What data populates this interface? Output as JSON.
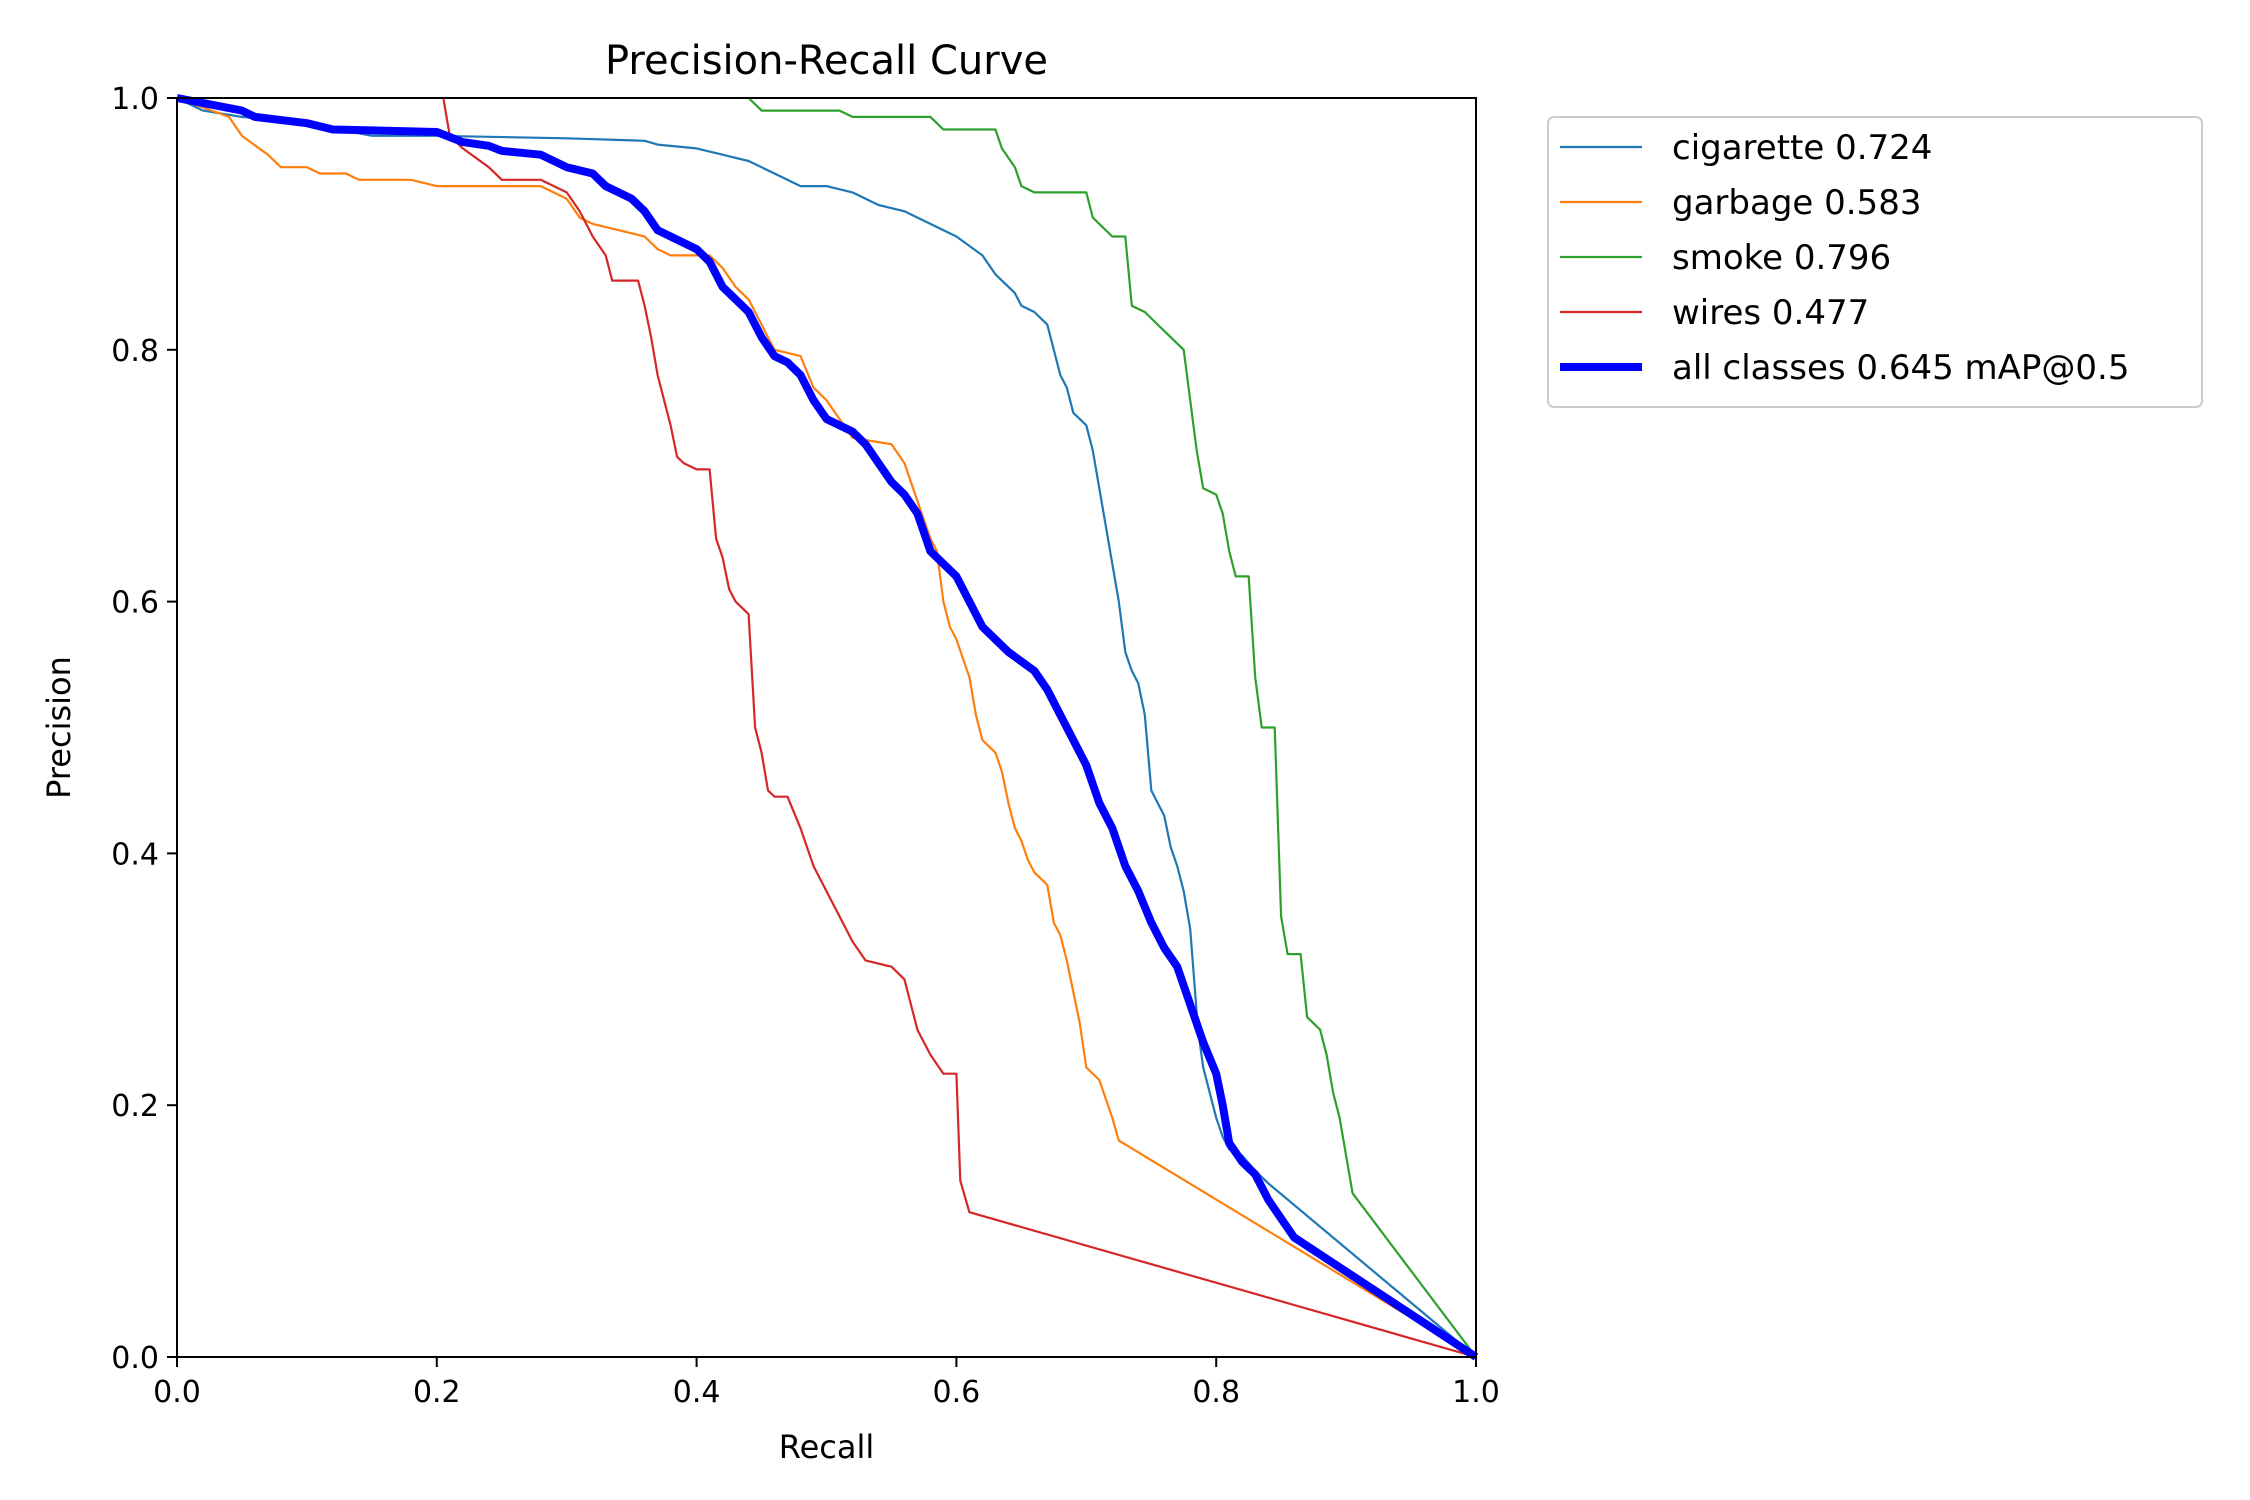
{
  "chart_data": {
    "type": "line",
    "title": "Precision-Recall Curve",
    "xlabel": "Recall",
    "ylabel": "Precision",
    "xlim": [
      0,
      1
    ],
    "ylim": [
      0,
      1
    ],
    "xticks": [
      "0.0",
      "0.2",
      "0.4",
      "0.6",
      "0.8",
      "1.0"
    ],
    "yticks": [
      "0.0",
      "0.2",
      "0.4",
      "0.6",
      "0.8",
      "1.0"
    ],
    "grid": false,
    "legend_position": "outside-top-right",
    "series": [
      {
        "name": "cigarette 0.724",
        "color": "#1f77b4",
        "width": "thin",
        "points": [
          [
            0,
            1.0
          ],
          [
            0.02,
            0.99
          ],
          [
            0.05,
            0.985
          ],
          [
            0.1,
            0.98
          ],
          [
            0.15,
            0.97
          ],
          [
            0.2,
            0.97
          ],
          [
            0.3,
            0.968
          ],
          [
            0.36,
            0.966
          ],
          [
            0.37,
            0.963
          ],
          [
            0.4,
            0.96
          ],
          [
            0.42,
            0.955
          ],
          [
            0.44,
            0.95
          ],
          [
            0.46,
            0.94
          ],
          [
            0.48,
            0.93
          ],
          [
            0.5,
            0.93
          ],
          [
            0.52,
            0.925
          ],
          [
            0.54,
            0.915
          ],
          [
            0.56,
            0.91
          ],
          [
            0.58,
            0.9
          ],
          [
            0.6,
            0.89
          ],
          [
            0.62,
            0.875
          ],
          [
            0.63,
            0.86
          ],
          [
            0.645,
            0.845
          ],
          [
            0.65,
            0.835
          ],
          [
            0.66,
            0.83
          ],
          [
            0.67,
            0.82
          ],
          [
            0.675,
            0.8
          ],
          [
            0.68,
            0.78
          ],
          [
            0.685,
            0.77
          ],
          [
            0.69,
            0.75
          ],
          [
            0.7,
            0.74
          ],
          [
            0.705,
            0.72
          ],
          [
            0.71,
            0.69
          ],
          [
            0.715,
            0.66
          ],
          [
            0.72,
            0.63
          ],
          [
            0.725,
            0.6
          ],
          [
            0.73,
            0.56
          ],
          [
            0.735,
            0.545
          ],
          [
            0.74,
            0.535
          ],
          [
            0.745,
            0.51
          ],
          [
            0.75,
            0.45
          ],
          [
            0.755,
            0.44
          ],
          [
            0.76,
            0.43
          ],
          [
            0.765,
            0.405
          ],
          [
            0.77,
            0.39
          ],
          [
            0.775,
            0.37
          ],
          [
            0.78,
            0.34
          ],
          [
            0.783,
            0.3
          ],
          [
            0.786,
            0.26
          ],
          [
            0.79,
            0.23
          ],
          [
            0.8,
            0.19
          ],
          [
            0.805,
            0.175
          ],
          [
            0.81,
            0.165
          ],
          [
            0.82,
            0.16
          ],
          [
            0.83,
            0.148
          ],
          [
            0.84,
            0.138
          ],
          [
            1.0,
            0.0
          ]
        ]
      },
      {
        "name": "garbage 0.583",
        "color": "#ff7f0e",
        "width": "thin",
        "points": [
          [
            0,
            1.0
          ],
          [
            0.04,
            0.985
          ],
          [
            0.05,
            0.97
          ],
          [
            0.07,
            0.955
          ],
          [
            0.08,
            0.945
          ],
          [
            0.1,
            0.945
          ],
          [
            0.11,
            0.94
          ],
          [
            0.13,
            0.94
          ],
          [
            0.14,
            0.935
          ],
          [
            0.18,
            0.935
          ],
          [
            0.2,
            0.93
          ],
          [
            0.28,
            0.93
          ],
          [
            0.3,
            0.92
          ],
          [
            0.31,
            0.905
          ],
          [
            0.32,
            0.9
          ],
          [
            0.34,
            0.895
          ],
          [
            0.36,
            0.89
          ],
          [
            0.37,
            0.88
          ],
          [
            0.38,
            0.875
          ],
          [
            0.41,
            0.875
          ],
          [
            0.42,
            0.865
          ],
          [
            0.43,
            0.85
          ],
          [
            0.44,
            0.84
          ],
          [
            0.445,
            0.83
          ],
          [
            0.45,
            0.82
          ],
          [
            0.455,
            0.81
          ],
          [
            0.46,
            0.8
          ],
          [
            0.48,
            0.795
          ],
          [
            0.49,
            0.77
          ],
          [
            0.5,
            0.76
          ],
          [
            0.51,
            0.745
          ],
          [
            0.52,
            0.73
          ],
          [
            0.55,
            0.725
          ],
          [
            0.56,
            0.71
          ],
          [
            0.565,
            0.695
          ],
          [
            0.57,
            0.68
          ],
          [
            0.575,
            0.665
          ],
          [
            0.58,
            0.65
          ],
          [
            0.585,
            0.64
          ],
          [
            0.59,
            0.6
          ],
          [
            0.595,
            0.58
          ],
          [
            0.6,
            0.57
          ],
          [
            0.605,
            0.555
          ],
          [
            0.61,
            0.54
          ],
          [
            0.615,
            0.51
          ],
          [
            0.62,
            0.49
          ],
          [
            0.63,
            0.48
          ],
          [
            0.635,
            0.465
          ],
          [
            0.64,
            0.44
          ],
          [
            0.645,
            0.42
          ],
          [
            0.65,
            0.41
          ],
          [
            0.655,
            0.395
          ],
          [
            0.66,
            0.385
          ],
          [
            0.67,
            0.375
          ],
          [
            0.675,
            0.345
          ],
          [
            0.68,
            0.335
          ],
          [
            0.685,
            0.315
          ],
          [
            0.69,
            0.29
          ],
          [
            0.695,
            0.265
          ],
          [
            0.7,
            0.23
          ],
          [
            0.71,
            0.22
          ],
          [
            0.715,
            0.205
          ],
          [
            0.72,
            0.19
          ],
          [
            0.725,
            0.172
          ],
          [
            1.0,
            0.0
          ]
        ]
      },
      {
        "name": "smoke 0.796",
        "color": "#2ca02c",
        "width": "thin",
        "points": [
          [
            0.44,
            1.0
          ],
          [
            0.45,
            0.99
          ],
          [
            0.51,
            0.99
          ],
          [
            0.52,
            0.985
          ],
          [
            0.58,
            0.985
          ],
          [
            0.59,
            0.975
          ],
          [
            0.63,
            0.975
          ],
          [
            0.635,
            0.96
          ],
          [
            0.645,
            0.945
          ],
          [
            0.65,
            0.93
          ],
          [
            0.66,
            0.925
          ],
          [
            0.68,
            0.925
          ],
          [
            0.7,
            0.925
          ],
          [
            0.705,
            0.905
          ],
          [
            0.71,
            0.9
          ],
          [
            0.72,
            0.89
          ],
          [
            0.73,
            0.89
          ],
          [
            0.735,
            0.835
          ],
          [
            0.745,
            0.83
          ],
          [
            0.755,
            0.82
          ],
          [
            0.765,
            0.81
          ],
          [
            0.775,
            0.8
          ],
          [
            0.78,
            0.76
          ],
          [
            0.785,
            0.72
          ],
          [
            0.79,
            0.69
          ],
          [
            0.8,
            0.685
          ],
          [
            0.805,
            0.67
          ],
          [
            0.81,
            0.64
          ],
          [
            0.815,
            0.62
          ],
          [
            0.825,
            0.62
          ],
          [
            0.83,
            0.54
          ],
          [
            0.835,
            0.5
          ],
          [
            0.845,
            0.5
          ],
          [
            0.85,
            0.35
          ],
          [
            0.855,
            0.32
          ],
          [
            0.865,
            0.32
          ],
          [
            0.87,
            0.27
          ],
          [
            0.88,
            0.26
          ],
          [
            0.885,
            0.24
          ],
          [
            0.89,
            0.21
          ],
          [
            0.895,
            0.19
          ],
          [
            0.9,
            0.16
          ],
          [
            0.905,
            0.13
          ],
          [
            1.0,
            0.0
          ]
        ]
      },
      {
        "name": "wires 0.477",
        "color": "#d62728",
        "width": "thin",
        "points": [
          [
            0.205,
            1.0
          ],
          [
            0.21,
            0.97
          ],
          [
            0.22,
            0.96
          ],
          [
            0.24,
            0.945
          ],
          [
            0.25,
            0.935
          ],
          [
            0.28,
            0.935
          ],
          [
            0.3,
            0.925
          ],
          [
            0.31,
            0.91
          ],
          [
            0.32,
            0.89
          ],
          [
            0.33,
            0.875
          ],
          [
            0.335,
            0.855
          ],
          [
            0.355,
            0.855
          ],
          [
            0.36,
            0.835
          ],
          [
            0.365,
            0.81
          ],
          [
            0.37,
            0.78
          ],
          [
            0.375,
            0.76
          ],
          [
            0.38,
            0.74
          ],
          [
            0.385,
            0.715
          ],
          [
            0.39,
            0.71
          ],
          [
            0.4,
            0.705
          ],
          [
            0.41,
            0.705
          ],
          [
            0.415,
            0.65
          ],
          [
            0.42,
            0.635
          ],
          [
            0.425,
            0.61
          ],
          [
            0.43,
            0.6
          ],
          [
            0.44,
            0.59
          ],
          [
            0.445,
            0.5
          ],
          [
            0.45,
            0.48
          ],
          [
            0.455,
            0.45
          ],
          [
            0.46,
            0.445
          ],
          [
            0.47,
            0.445
          ],
          [
            0.48,
            0.42
          ],
          [
            0.49,
            0.39
          ],
          [
            0.5,
            0.37
          ],
          [
            0.51,
            0.35
          ],
          [
            0.52,
            0.33
          ],
          [
            0.53,
            0.315
          ],
          [
            0.55,
            0.31
          ],
          [
            0.56,
            0.3
          ],
          [
            0.565,
            0.28
          ],
          [
            0.57,
            0.26
          ],
          [
            0.58,
            0.24
          ],
          [
            0.59,
            0.225
          ],
          [
            0.6,
            0.225
          ],
          [
            0.603,
            0.14
          ],
          [
            0.61,
            0.115
          ],
          [
            1.0,
            0.0
          ]
        ]
      },
      {
        "name": "all classes 0.645 mAP@0.5",
        "color": "#0000ff",
        "width": "thick",
        "points": [
          [
            0,
            1.0
          ],
          [
            0.05,
            0.99
          ],
          [
            0.06,
            0.985
          ],
          [
            0.1,
            0.98
          ],
          [
            0.12,
            0.975
          ],
          [
            0.2,
            0.973
          ],
          [
            0.22,
            0.965
          ],
          [
            0.24,
            0.962
          ],
          [
            0.25,
            0.958
          ],
          [
            0.28,
            0.955
          ],
          [
            0.3,
            0.945
          ],
          [
            0.32,
            0.94
          ],
          [
            0.33,
            0.93
          ],
          [
            0.35,
            0.92
          ],
          [
            0.36,
            0.91
          ],
          [
            0.37,
            0.895
          ],
          [
            0.38,
            0.89
          ],
          [
            0.4,
            0.88
          ],
          [
            0.41,
            0.87
          ],
          [
            0.42,
            0.85
          ],
          [
            0.43,
            0.84
          ],
          [
            0.44,
            0.83
          ],
          [
            0.45,
            0.81
          ],
          [
            0.46,
            0.795
          ],
          [
            0.47,
            0.79
          ],
          [
            0.48,
            0.78
          ],
          [
            0.49,
            0.76
          ],
          [
            0.5,
            0.745
          ],
          [
            0.52,
            0.735
          ],
          [
            0.53,
            0.725
          ],
          [
            0.54,
            0.71
          ],
          [
            0.55,
            0.695
          ],
          [
            0.56,
            0.685
          ],
          [
            0.57,
            0.67
          ],
          [
            0.58,
            0.64
          ],
          [
            0.6,
            0.62
          ],
          [
            0.61,
            0.6
          ],
          [
            0.62,
            0.58
          ],
          [
            0.63,
            0.57
          ],
          [
            0.64,
            0.56
          ],
          [
            0.66,
            0.545
          ],
          [
            0.67,
            0.53
          ],
          [
            0.68,
            0.51
          ],
          [
            0.69,
            0.49
          ],
          [
            0.7,
            0.47
          ],
          [
            0.71,
            0.44
          ],
          [
            0.72,
            0.42
          ],
          [
            0.73,
            0.39
          ],
          [
            0.74,
            0.37
          ],
          [
            0.75,
            0.345
          ],
          [
            0.76,
            0.325
          ],
          [
            0.77,
            0.31
          ],
          [
            0.78,
            0.28
          ],
          [
            0.79,
            0.25
          ],
          [
            0.8,
            0.225
          ],
          [
            0.805,
            0.2
          ],
          [
            0.81,
            0.17
          ],
          [
            0.82,
            0.155
          ],
          [
            0.83,
            0.145
          ],
          [
            0.84,
            0.125
          ],
          [
            0.85,
            0.11
          ],
          [
            0.86,
            0.095
          ],
          [
            1.0,
            0.0
          ]
        ]
      }
    ]
  }
}
